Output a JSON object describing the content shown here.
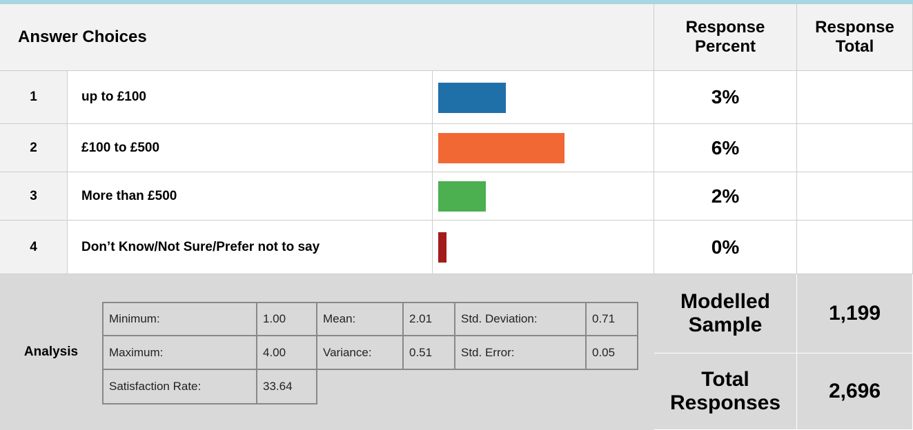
{
  "header": {
    "answer_choices": "Answer Choices",
    "response_percent": "Response Percent",
    "response_total": "Response Total"
  },
  "rows": [
    {
      "number": "1",
      "label": "up to £100",
      "percent": 3,
      "percent_label": "3%",
      "color": "#1f6fa8"
    },
    {
      "number": "2",
      "label": "£100 to £500",
      "percent": 6,
      "percent_label": "6%",
      "color": "#f26835"
    },
    {
      "number": "3",
      "label": "More than £500",
      "percent": 2,
      "percent_label": "2%",
      "color": "#4caf50"
    },
    {
      "number": "4",
      "label": "Don’t Know/Not Sure/Prefer not to say",
      "percent": 0,
      "percent_label": "0%",
      "color": "#a31c1c"
    }
  ],
  "analysis": {
    "label": "Analysis",
    "stats": [
      {
        "label": "Minimum:",
        "value": "1.00"
      },
      {
        "label": "Mean:",
        "value": "2.01"
      },
      {
        "label": "Std. Deviation:",
        "value": "0.71"
      },
      {
        "label": "Maximum:",
        "value": "4.00"
      },
      {
        "label": "Variance:",
        "value": "0.51"
      },
      {
        "label": "Std. Error:",
        "value": "0.05"
      },
      {
        "label": "Satisfaction Rate:",
        "value": "33.64"
      }
    ]
  },
  "summary": [
    {
      "label": "Modelled Sample",
      "value": "1,199"
    },
    {
      "label": "Total Responses",
      "value": "2,696"
    }
  ]
}
